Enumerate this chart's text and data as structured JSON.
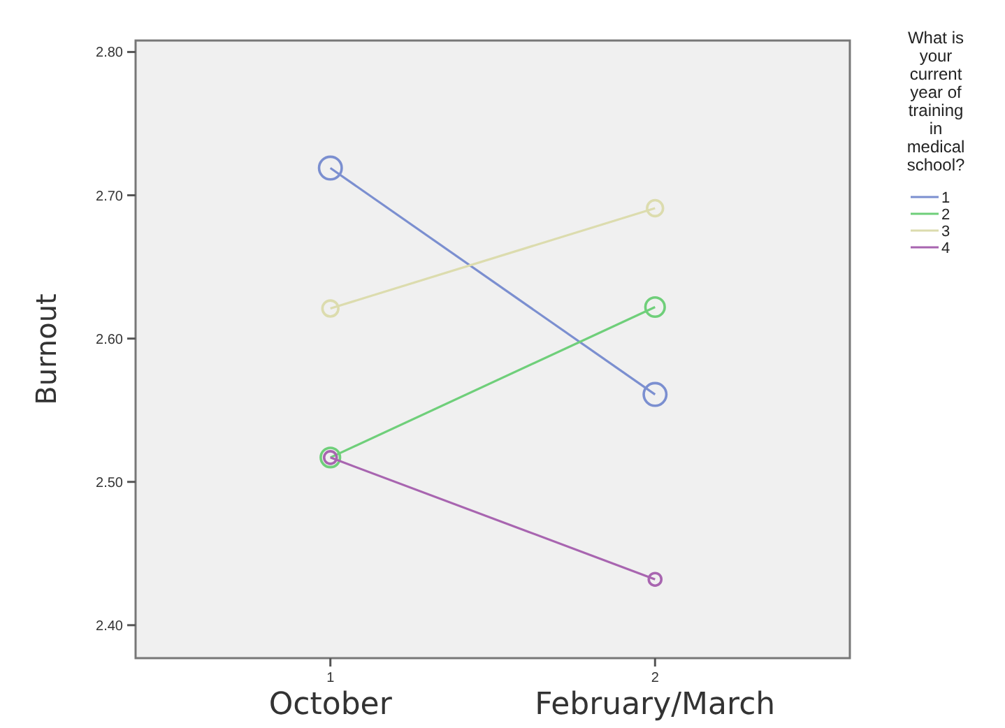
{
  "chart_data": {
    "type": "line",
    "ylabel": "Burnout",
    "legend_title": "What is your current year of training in medical school?",
    "categories": [
      "1",
      "2"
    ],
    "annotations": [
      "October",
      "February/March"
    ],
    "ylim": [
      2.377,
      2.808
    ],
    "yticks": [
      {
        "value": 2.4,
        "label": "2.40"
      },
      {
        "value": 2.5,
        "label": "2.50"
      },
      {
        "value": 2.6,
        "label": "2.60"
      },
      {
        "value": 2.7,
        "label": "2.70"
      },
      {
        "value": 2.8,
        "label": "2.80"
      }
    ],
    "grid": false,
    "legend": "right",
    "marker": "circle",
    "line_style": "solid",
    "series": [
      {
        "name": "1",
        "color": "#7b8fd0",
        "values": [
          2.719,
          2.561
        ]
      },
      {
        "name": "2",
        "color": "#6fcf7a",
        "values": [
          2.517,
          2.622
        ]
      },
      {
        "name": "3",
        "color": "#dcdcae",
        "values": [
          2.621,
          2.691
        ]
      },
      {
        "name": "4",
        "color": "#a865b0",
        "values": [
          2.517,
          2.432
        ]
      }
    ]
  }
}
